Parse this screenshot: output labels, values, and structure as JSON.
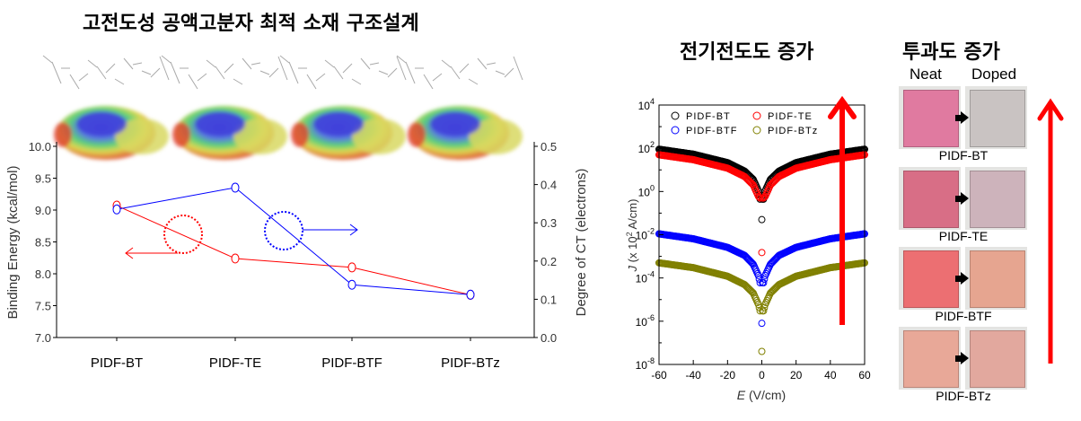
{
  "titles": {
    "left": "고전도성 공액고분자 최적 소재 구조설계",
    "middle": "전기전도도 증가",
    "right": "투과도 증가"
  },
  "photos": {
    "col_neat": "Neat",
    "col_doped": "Doped",
    "rows": [
      {
        "label": "PIDF-BT",
        "neat_color": "#e07aa0",
        "doped_color": "#c9c3c2"
      },
      {
        "label": "PIDF-TE",
        "neat_color": "#d86e86",
        "doped_color": "#cdb3bb"
      },
      {
        "label": "PIDF-BTF",
        "neat_color": "#ec6f72",
        "doped_color": "#e6a590"
      },
      {
        "label": "PIDF-BTz",
        "neat_color": "#e8a898",
        "doped_color": "#e2a89e"
      }
    ]
  },
  "colors": {
    "red": "#ff0000",
    "blue": "#0000ff",
    "black": "#000000",
    "olive": "#808000",
    "arrow": "#ff0000"
  },
  "chart_data": [
    {
      "type": "line",
      "categories": [
        "PIDF-BT",
        "PIDF-TE",
        "PIDF-BTF",
        "PIDF-BTz"
      ],
      "ylabel": "Binding Energy (kcal/mol)",
      "y2label": "Degree of CT (electrons)",
      "ylim": [
        7.0,
        10.0
      ],
      "y2lim": [
        0.0,
        0.5
      ],
      "yticks": [
        "7.0",
        "7.5",
        "8.0",
        "8.5",
        "9.0",
        "9.5",
        "10.0"
      ],
      "y2ticks": [
        "0.0",
        "0.1",
        "0.2",
        "0.3",
        "0.4",
        "0.5"
      ],
      "series": [
        {
          "axis": "left",
          "color": "#ff0000",
          "values": [
            9.07,
            8.24,
            8.1,
            7.67
          ]
        },
        {
          "axis": "right",
          "color": "#0000ff",
          "values": [
            0.335,
            0.392,
            0.138,
            0.112
          ]
        }
      ],
      "grid": false
    },
    {
      "type": "scatter",
      "xlabel_italic": "E",
      "xlabel_rest": " (V/cm)",
      "ylabel_italic": "J",
      "ylabel_rest_pre": " (x 10",
      "ylabel_sup": "2",
      "ylabel_rest_post": " A/cm)",
      "xlim": [
        -60,
        60
      ],
      "xticks": [
        "-60",
        "-40",
        "-20",
        "0",
        "20",
        "40",
        "60"
      ],
      "ylim": [
        1e-08,
        10000.0
      ],
      "yscale": "log",
      "yticks": [
        {
          "base": "10",
          "exp": "-8"
        },
        {
          "base": "10",
          "exp": "-6"
        },
        {
          "base": "10",
          "exp": "-4"
        },
        {
          "base": "10",
          "exp": "-2"
        },
        {
          "base": "10",
          "exp": "0"
        },
        {
          "base": "10",
          "exp": "2"
        },
        {
          "base": "10",
          "exp": "4"
        }
      ],
      "legend": "top-left",
      "x": [
        -60,
        -40,
        -20,
        -10,
        -5,
        -2,
        -1,
        0,
        1,
        2,
        5,
        10,
        20,
        40,
        60
      ],
      "series": [
        {
          "name": "PIDF-BT",
          "color": "#000000",
          "values": [
            90,
            53,
            21.6,
            8.7,
            3.6,
            1.08,
            0.44,
            0.05,
            0.44,
            1.08,
            3.6,
            8.7,
            21.6,
            53,
            90
          ]
        },
        {
          "name": "PIDF-TE",
          "color": "#ff0000",
          "values": [
            50,
            29.5,
            12,
            4.9,
            2.0,
            0.6,
            0.5,
            0.0015,
            0.5,
            0.6,
            2.0,
            4.9,
            12,
            29.5,
            50
          ]
        },
        {
          "name": "PIDF-BTF",
          "color": "#0000ff",
          "values": [
            0.011,
            0.0065,
            0.0026,
            0.0011,
            0.00043,
            0.00013,
            6e-05,
            8e-07,
            6e-05,
            0.00013,
            0.00043,
            0.0011,
            0.0026,
            0.0065,
            0.011
          ]
        },
        {
          "name": "PIDF-BTz",
          "color": "#808000",
          "values": [
            0.0005,
            0.0003,
            0.00012,
            4.9e-05,
            2e-05,
            6e-06,
            3e-06,
            4e-08,
            3e-06,
            6e-06,
            2e-05,
            4.9e-05,
            0.00012,
            0.0003,
            0.0005
          ]
        }
      ]
    }
  ]
}
